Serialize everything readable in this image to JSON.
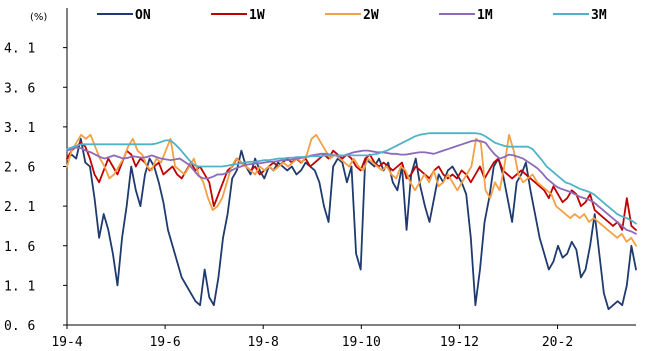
{
  "chart_data": {
    "type": "line",
    "unit_label": "(%)",
    "ylim": [
      0.6,
      4.6
    ],
    "yticks": [
      "0.6",
      "1.1",
      "1.6",
      "2.1",
      "2.6",
      "3.1",
      "3.6",
      "4.1"
    ],
    "xticks": [
      "19-4",
      "19-6",
      "19-8",
      "19-10",
      "19-12",
      "20-2"
    ],
    "x_index_range": [
      0,
      120
    ],
    "grid": false,
    "legend_position": "top",
    "series": [
      {
        "name": "ON",
        "color": "#1f3a6e",
        "values": [
          2.7,
          2.75,
          2.7,
          2.95,
          2.65,
          2.6,
          2.2,
          1.7,
          2.0,
          1.8,
          1.5,
          1.1,
          1.7,
          2.1,
          2.6,
          2.3,
          2.1,
          2.5,
          2.7,
          2.6,
          2.4,
          2.15,
          1.8,
          1.6,
          1.4,
          1.2,
          1.1,
          1.0,
          0.9,
          0.85,
          1.3,
          0.95,
          0.85,
          1.2,
          1.7,
          2.0,
          2.45,
          2.55,
          2.8,
          2.6,
          2.5,
          2.7,
          2.55,
          2.45,
          2.6,
          2.55,
          2.65,
          2.6,
          2.55,
          2.6,
          2.5,
          2.55,
          2.65,
          2.6,
          2.55,
          2.4,
          2.1,
          1.9,
          2.6,
          2.7,
          2.65,
          2.4,
          2.6,
          1.5,
          1.3,
          2.7,
          2.65,
          2.6,
          2.7,
          2.55,
          2.65,
          2.4,
          2.3,
          2.6,
          1.8,
          2.5,
          2.7,
          2.35,
          2.1,
          1.9,
          2.2,
          2.5,
          2.4,
          2.55,
          2.6,
          2.5,
          2.4,
          2.25,
          1.7,
          0.85,
          1.3,
          1.9,
          2.2,
          2.6,
          2.7,
          2.5,
          2.2,
          1.9,
          2.4,
          2.5,
          2.65,
          2.3,
          2.0,
          1.7,
          1.5,
          1.3,
          1.4,
          1.6,
          1.45,
          1.5,
          1.65,
          1.55,
          1.2,
          1.3,
          1.6,
          2.0,
          1.5,
          1.0,
          0.8,
          0.85,
          0.9,
          0.85,
          1.1,
          1.6,
          1.3
        ]
      },
      {
        "name": "1W",
        "color": "#c00000",
        "values": [
          2.7,
          2.8,
          2.85,
          2.9,
          2.85,
          2.7,
          2.5,
          2.4,
          2.55,
          2.7,
          2.6,
          2.5,
          2.65,
          2.8,
          2.75,
          2.6,
          2.7,
          2.65,
          2.55,
          2.6,
          2.65,
          2.5,
          2.55,
          2.6,
          2.5,
          2.45,
          2.55,
          2.65,
          2.55,
          2.6,
          2.5,
          2.4,
          2.1,
          2.25,
          2.4,
          2.55,
          2.6,
          2.7,
          2.65,
          2.6,
          2.55,
          2.6,
          2.5,
          2.55,
          2.6,
          2.65,
          2.6,
          2.65,
          2.7,
          2.65,
          2.7,
          2.65,
          2.7,
          2.6,
          2.65,
          2.7,
          2.75,
          2.7,
          2.8,
          2.75,
          2.7,
          2.75,
          2.7,
          2.6,
          2.55,
          2.7,
          2.75,
          2.65,
          2.6,
          2.65,
          2.6,
          2.55,
          2.6,
          2.65,
          2.45,
          2.5,
          2.6,
          2.55,
          2.5,
          2.45,
          2.55,
          2.6,
          2.5,
          2.45,
          2.5,
          2.45,
          2.55,
          2.5,
          2.4,
          2.5,
          2.6,
          2.45,
          2.55,
          2.65,
          2.7,
          2.55,
          2.5,
          2.45,
          2.5,
          2.55,
          2.5,
          2.45,
          2.4,
          2.35,
          2.3,
          2.2,
          2.35,
          2.25,
          2.15,
          2.2,
          2.3,
          2.25,
          2.1,
          2.15,
          2.25,
          2.05,
          2.0,
          1.95,
          1.9,
          1.85,
          1.9,
          1.8,
          2.2,
          1.85,
          1.8
        ]
      },
      {
        "name": "2W",
        "color": "#f4a045",
        "values": [
          2.6,
          2.8,
          2.9,
          3.0,
          2.95,
          3.0,
          2.85,
          2.7,
          2.6,
          2.45,
          2.5,
          2.6,
          2.7,
          2.85,
          2.95,
          2.8,
          2.75,
          2.6,
          2.55,
          2.7,
          2.65,
          2.8,
          2.95,
          2.6,
          2.55,
          2.5,
          2.6,
          2.7,
          2.5,
          2.4,
          2.2,
          2.05,
          2.1,
          2.2,
          2.4,
          2.6,
          2.7,
          2.65,
          2.6,
          2.55,
          2.5,
          2.6,
          2.55,
          2.6,
          2.55,
          2.6,
          2.65,
          2.6,
          2.65,
          2.7,
          2.65,
          2.75,
          2.95,
          3.0,
          2.9,
          2.8,
          2.7,
          2.75,
          2.7,
          2.65,
          2.6,
          2.7,
          2.6,
          2.55,
          2.7,
          2.65,
          2.6,
          2.55,
          2.6,
          2.5,
          2.45,
          2.6,
          2.55,
          2.4,
          2.3,
          2.4,
          2.5,
          2.4,
          2.55,
          2.35,
          2.4,
          2.5,
          2.4,
          2.3,
          2.4,
          2.5,
          2.6,
          2.95,
          2.9,
          2.3,
          2.2,
          2.4,
          2.3,
          2.6,
          3.0,
          2.8,
          2.5,
          2.4,
          2.45,
          2.5,
          2.4,
          2.35,
          2.3,
          2.25,
          2.1,
          2.05,
          2.0,
          1.95,
          2.0,
          1.95,
          2.0,
          1.9,
          1.95,
          1.9,
          1.85,
          1.8,
          1.75,
          1.7,
          1.75,
          1.65,
          1.7,
          1.6
        ]
      },
      {
        "name": "1M",
        "color": "#8e6bb8",
        "values": [
          2.8,
          2.82,
          2.84,
          2.83,
          2.8,
          2.78,
          2.75,
          2.72,
          2.7,
          2.72,
          2.74,
          2.72,
          2.7,
          2.71,
          2.73,
          2.72,
          2.71,
          2.72,
          2.74,
          2.72,
          2.7,
          2.69,
          2.68,
          2.69,
          2.7,
          2.66,
          2.62,
          2.55,
          2.48,
          2.45,
          2.45,
          2.47,
          2.5,
          2.5,
          2.52,
          2.55,
          2.58,
          2.6,
          2.62,
          2.63,
          2.64,
          2.64,
          2.65,
          2.66,
          2.66,
          2.67,
          2.68,
          2.68,
          2.69,
          2.7,
          2.71,
          2.72,
          2.74,
          2.75,
          2.76,
          2.76,
          2.75,
          2.74,
          2.73,
          2.74,
          2.76,
          2.78,
          2.79,
          2.8,
          2.8,
          2.79,
          2.78,
          2.78,
          2.77,
          2.76,
          2.76,
          2.75,
          2.75,
          2.76,
          2.77,
          2.78,
          2.78,
          2.77,
          2.76,
          2.78,
          2.8,
          2.82,
          2.84,
          2.86,
          2.88,
          2.9,
          2.92,
          2.93,
          2.92,
          2.9,
          2.82,
          2.75,
          2.7,
          2.72,
          2.75,
          2.74,
          2.72,
          2.7,
          2.66,
          2.62,
          2.58,
          2.52,
          2.45,
          2.4,
          2.35,
          2.32,
          2.3,
          2.28,
          2.25,
          2.22,
          2.2,
          2.18,
          2.15,
          2.1,
          2.05,
          2.0,
          1.95,
          1.9,
          1.85,
          1.8,
          1.78,
          1.75
        ]
      },
      {
        "name": "3M",
        "color": "#4fb3c8",
        "values": [
          2.82,
          2.84,
          2.86,
          2.88,
          2.88,
          2.88,
          2.88,
          2.88,
          2.88,
          2.88,
          2.88,
          2.88,
          2.88,
          2.88,
          2.88,
          2.88,
          2.88,
          2.88,
          2.88,
          2.89,
          2.91,
          2.93,
          2.93,
          2.88,
          2.82,
          2.75,
          2.68,
          2.62,
          2.6,
          2.6,
          2.6,
          2.6,
          2.6,
          2.6,
          2.61,
          2.62,
          2.63,
          2.64,
          2.65,
          2.66,
          2.66,
          2.67,
          2.68,
          2.68,
          2.69,
          2.7,
          2.7,
          2.71,
          2.71,
          2.72,
          2.72,
          2.72,
          2.73,
          2.73,
          2.73,
          2.74,
          2.74,
          2.74,
          2.74,
          2.74,
          2.74,
          2.74,
          2.74,
          2.74,
          2.74,
          2.75,
          2.76,
          2.78,
          2.8,
          2.83,
          2.86,
          2.89,
          2.92,
          2.95,
          2.98,
          3.0,
          3.01,
          3.02,
          3.02,
          3.02,
          3.02,
          3.02,
          3.02,
          3.02,
          3.02,
          3.02,
          3.02,
          3.02,
          3.01,
          2.98,
          2.94,
          2.9,
          2.88,
          2.86,
          2.85,
          2.85,
          2.85,
          2.85,
          2.85,
          2.82,
          2.75,
          2.68,
          2.6,
          2.55,
          2.5,
          2.45,
          2.4,
          2.38,
          2.35,
          2.32,
          2.3,
          2.28,
          2.25,
          2.2,
          2.15,
          2.1,
          2.05,
          2.0,
          1.97,
          1.95,
          1.92,
          1.88
        ]
      }
    ]
  }
}
